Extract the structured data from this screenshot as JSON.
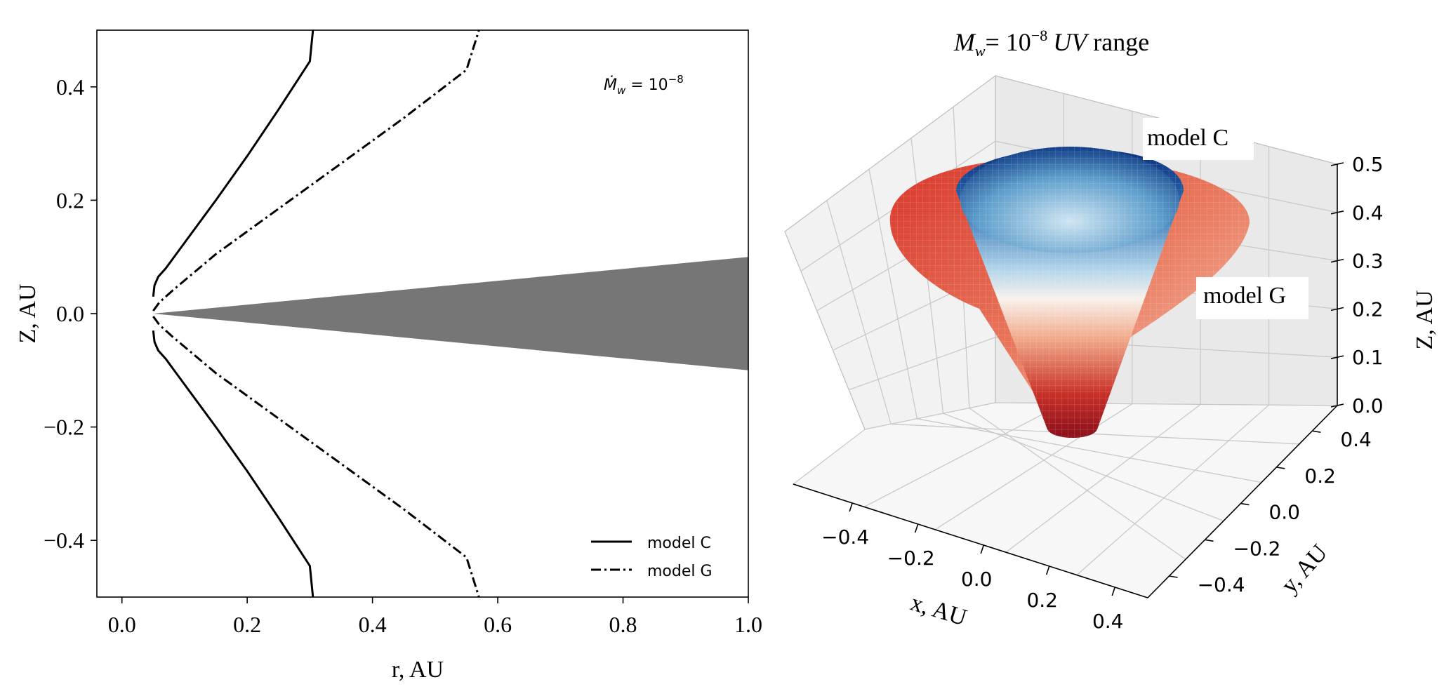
{
  "chart_data": [
    {
      "type": "line",
      "title": "",
      "xlabel": "r, AU",
      "ylabel": "Z, AU",
      "xlim": [
        -0.04,
        1.0
      ],
      "ylim": [
        -0.5,
        0.5
      ],
      "xticks": [
        "0.0",
        "0.2",
        "0.4",
        "0.6",
        "0.8",
        "1.0"
      ],
      "yticks": [
        "0.4",
        "0.2",
        "0.0",
        "−0.2",
        "−0.4"
      ],
      "annotation": {
        "text_base": "Ṁ",
        "text_sub": "w",
        "text_eq": " = 10",
        "text_sup": "−8"
      },
      "disk": {
        "label": "disk",
        "color": "#767676",
        "points": [
          [
            0.05,
            0.0
          ],
          [
            1.0,
            0.1
          ],
          [
            1.0,
            -0.1
          ]
        ]
      },
      "series": [
        {
          "name": "model C",
          "style": "solid",
          "x": [
            0.05,
            0.052,
            0.058,
            0.07,
            0.1,
            0.15,
            0.2,
            0.25,
            0.3,
            0.305
          ],
          "y": [
            0.03,
            0.05,
            0.065,
            0.08,
            0.125,
            0.2,
            0.278,
            0.36,
            0.445,
            0.5
          ]
        },
        {
          "name": "model G",
          "style": "dashdot",
          "x": [
            0.05,
            0.06,
            0.08,
            0.15,
            0.25,
            0.35,
            0.45,
            0.55,
            0.57
          ],
          "y": [
            0.005,
            0.02,
            0.04,
            0.105,
            0.185,
            0.265,
            0.345,
            0.43,
            0.5
          ]
        }
      ],
      "mirror": true,
      "legend": {
        "placement": "bottom-right",
        "entries": [
          "model C",
          "model G"
        ]
      }
    },
    {
      "type": "surface3d",
      "title_parts": {
        "m": "M",
        "sub": "w",
        "eq": "= 10",
        "sup": "−8",
        "uv": "UV",
        "range": " range"
      },
      "xlabel": "x, AU",
      "ylabel": "y, AU",
      "zlabel": "Z, AU",
      "xticks": [
        "−0.4",
        "−0.2",
        "0.0",
        "0.2",
        "0.4"
      ],
      "yticks": [
        "−0.4",
        "−0.2",
        "0.0",
        "0.2",
        "0.4"
      ],
      "zticks": [
        "0.0",
        "0.1",
        "0.2",
        "0.3",
        "0.4",
        "0.5"
      ],
      "zlim": [
        0.0,
        0.5
      ],
      "surfaces": [
        {
          "name": "model G",
          "label": "model G",
          "colormap": "reds",
          "radius_at_top": 0.55,
          "height": 0.5
        },
        {
          "name": "model C",
          "label": "model C",
          "colormap": "blue-white-red",
          "radius_at_top": 0.3,
          "height": 0.5
        }
      ]
    }
  ]
}
